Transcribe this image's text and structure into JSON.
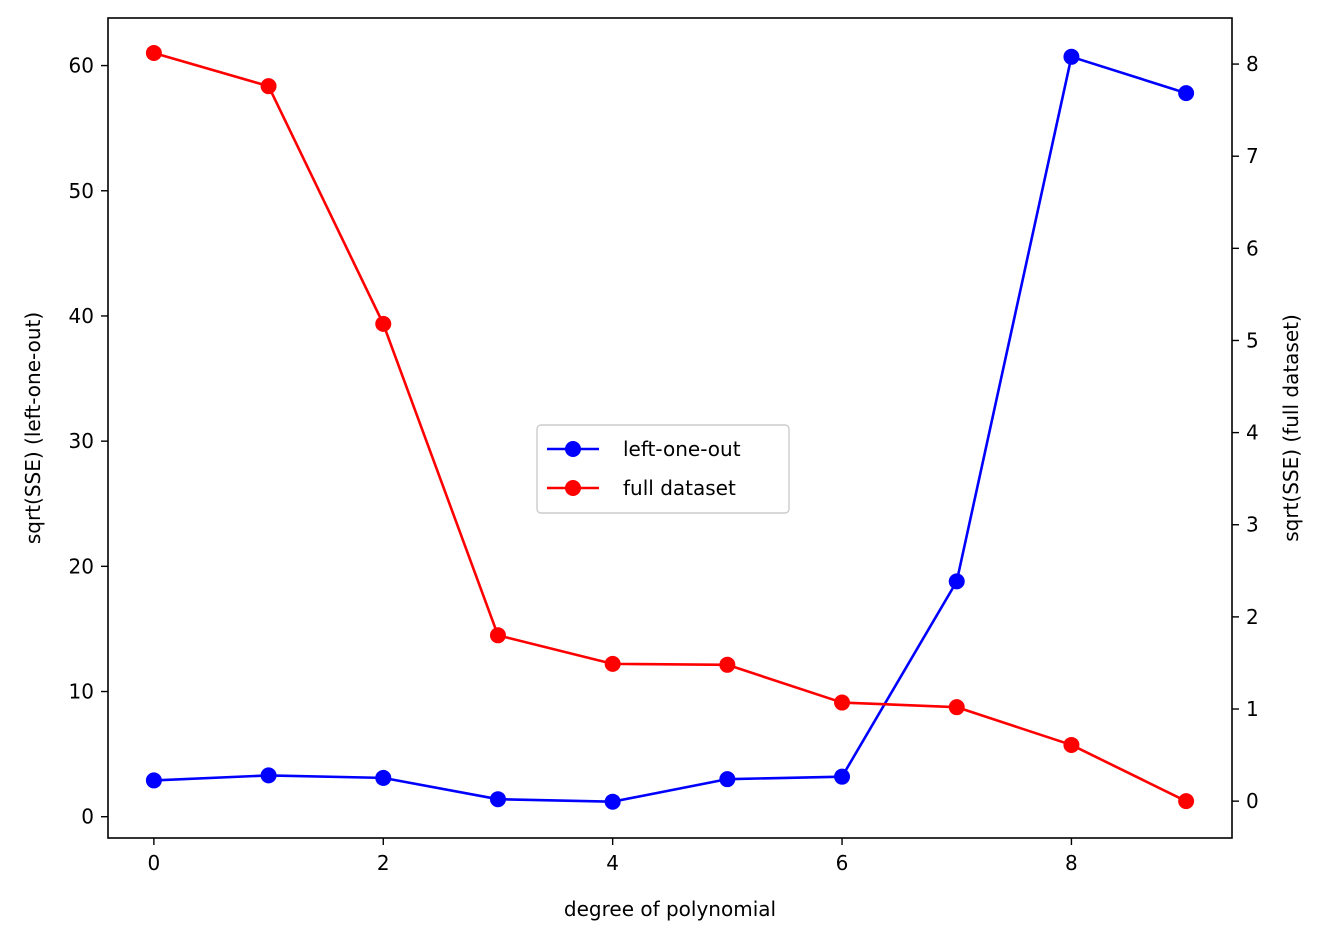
{
  "chart_data": {
    "type": "line",
    "title": "",
    "xlabel": "degree of polynomial",
    "ylabel_left": "sqrt(SSE) (left-one-out)",
    "ylabel_right": "sqrt(SSE) (full dataset)",
    "x": [
      0,
      1,
      2,
      3,
      4,
      5,
      6,
      7,
      8,
      9
    ],
    "xlim": [
      -0.4,
      9.4
    ],
    "xticks": [
      0,
      2,
      4,
      6,
      8
    ],
    "ylim_left": [
      -1.7,
      63.8
    ],
    "yticks_left": [
      0,
      10,
      20,
      30,
      40,
      50,
      60
    ],
    "ylim_right": [
      -0.4,
      8.5
    ],
    "yticks_right": [
      0,
      1,
      2,
      3,
      4,
      5,
      6,
      7,
      8
    ],
    "grid": false,
    "legend_position": "center",
    "series": [
      {
        "name": "left-one-out",
        "axis": "left",
        "color": "#0000ff",
        "marker": "circle",
        "values": [
          2.9,
          3.3,
          3.1,
          1.4,
          1.2,
          3.0,
          3.2,
          18.8,
          60.7,
          57.8
        ]
      },
      {
        "name": "full dataset",
        "axis": "right",
        "color": "#ff0000",
        "marker": "circle",
        "values": [
          8.12,
          7.76,
          5.18,
          1.8,
          1.49,
          1.48,
          1.07,
          1.02,
          0.61,
          0.0
        ]
      }
    ]
  }
}
